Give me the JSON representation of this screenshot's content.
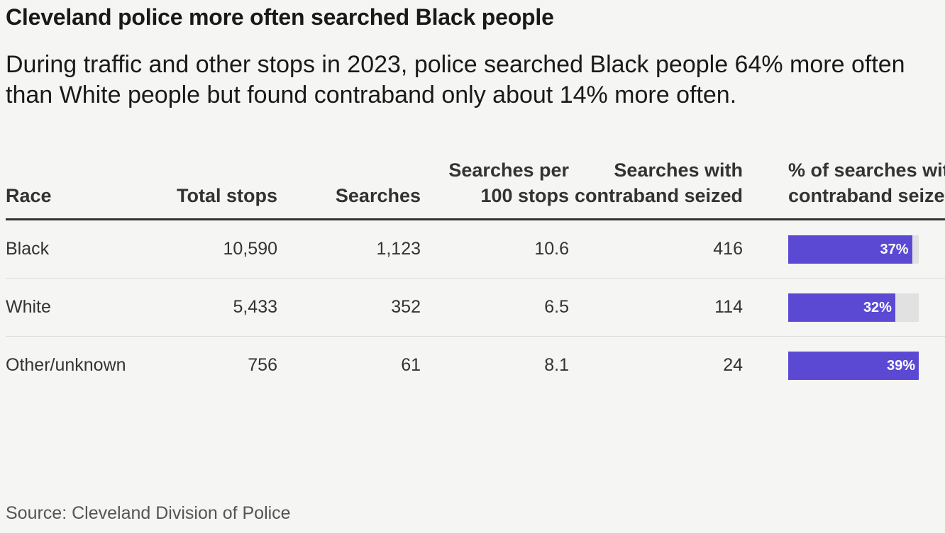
{
  "title": "Cleveland police more often searched Black people",
  "subtitle": "During traffic and other stops in 2023, police searched Black people 64% more often than White people but found contraband only about 14% more often.",
  "source": "Source: Cleveland Division of Police",
  "chart_data": {
    "type": "table",
    "columns": [
      "Race",
      "Total stops",
      "Searches",
      "Searches per 100 stops",
      "Searches with contraband seized",
      "% of searches with contraband seized"
    ],
    "rows": [
      {
        "race": "Black",
        "total_stops": "10,590",
        "searches": "1,123",
        "per100": "10.6",
        "contraband": "416",
        "pct": 37,
        "pct_label": "37%"
      },
      {
        "race": "White",
        "total_stops": "5,433",
        "searches": "352",
        "per100": "6.5",
        "contraband": "114",
        "pct": 32,
        "pct_label": "32%"
      },
      {
        "race": "Other/unknown",
        "total_stops": "756",
        "searches": "61",
        "per100": "8.1",
        "contraband": "24",
        "pct": 39,
        "pct_label": "39%"
      }
    ],
    "bar_scale_max": 39,
    "bar_color": "#5b49d4",
    "track_color": "#e1e1e1"
  }
}
